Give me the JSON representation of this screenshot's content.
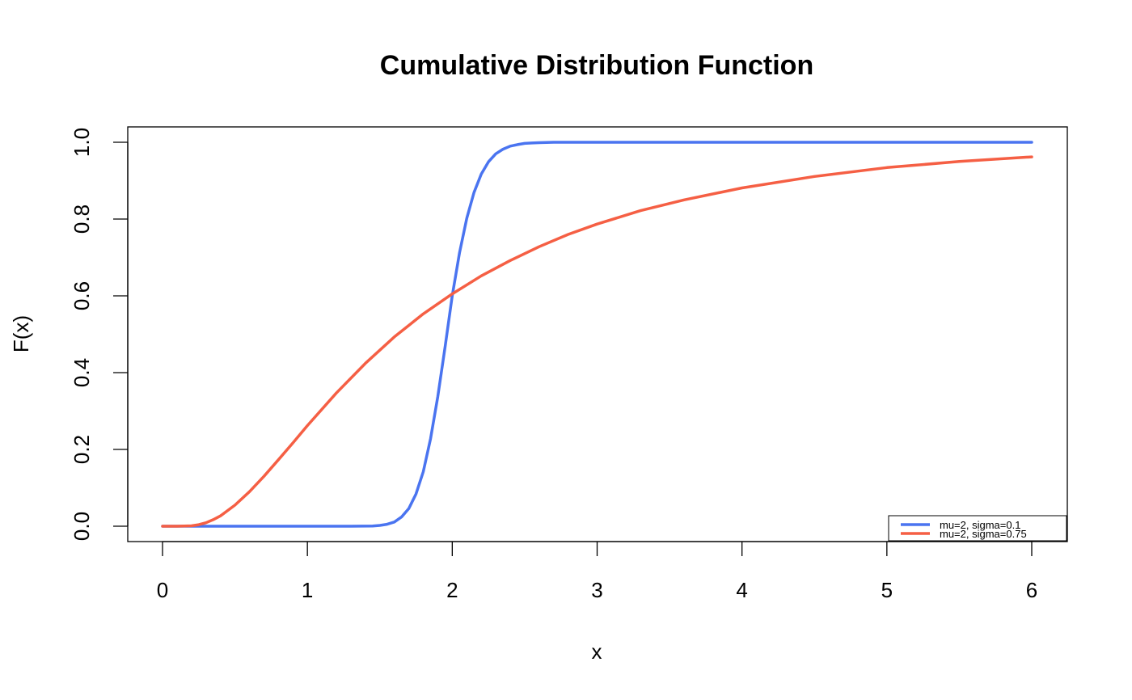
{
  "chart_data": {
    "type": "line",
    "title": "Cumulative Distribution Function",
    "xlabel": "x",
    "ylabel": "F(x)",
    "xlim": [
      0,
      6
    ],
    "ylim": [
      0,
      1
    ],
    "x_ticks": [
      "0",
      "1",
      "2",
      "3",
      "4",
      "5",
      "6"
    ],
    "y_ticks": [
      "0.0",
      "0.2",
      "0.4",
      "0.6",
      "0.8",
      "1.0"
    ],
    "grid": false,
    "legend_position": "bottom-right",
    "series": [
      {
        "name": "mu=2, sigma=0.1",
        "color": "#4A74F0",
        "x": [
          0,
          0.5,
          1.0,
          1.3,
          1.45,
          1.5,
          1.55,
          1.6,
          1.65,
          1.7,
          1.75,
          1.8,
          1.85,
          1.9,
          1.95,
          2.0,
          2.05,
          2.1,
          2.15,
          2.2,
          2.25,
          2.3,
          2.35,
          2.4,
          2.45,
          2.5,
          2.55,
          2.6,
          2.7,
          2.8,
          3.0,
          4.0,
          5.0,
          6.0
        ],
        "y": [
          0,
          0,
          0,
          0,
          0.0007,
          0.002,
          0.005,
          0.011,
          0.024,
          0.046,
          0.084,
          0.142,
          0.228,
          0.337,
          0.466,
          0.6,
          0.712,
          0.802,
          0.869,
          0.917,
          0.949,
          0.97,
          0.982,
          0.99,
          0.994,
          0.997,
          0.998,
          0.999,
          1.0,
          1.0,
          1.0,
          1.0,
          1.0,
          1.0
        ]
      },
      {
        "name": "mu=2, sigma=0.75",
        "color": "#F55F44",
        "x": [
          0,
          0.1,
          0.2,
          0.25,
          0.3,
          0.35,
          0.4,
          0.5,
          0.6,
          0.7,
          0.8,
          0.9,
          1.0,
          1.2,
          1.4,
          1.6,
          1.8,
          2.0,
          2.2,
          2.4,
          2.6,
          2.8,
          3.0,
          3.3,
          3.6,
          4.0,
          4.5,
          5.0,
          5.5,
          6.0
        ],
        "y": [
          0,
          0,
          0.001,
          0.004,
          0.009,
          0.017,
          0.027,
          0.055,
          0.09,
          0.13,
          0.173,
          0.217,
          0.262,
          0.347,
          0.424,
          0.493,
          0.553,
          0.605,
          0.652,
          0.692,
          0.728,
          0.76,
          0.787,
          0.822,
          0.85,
          0.881,
          0.911,
          0.934,
          0.95,
          0.962
        ]
      }
    ]
  }
}
